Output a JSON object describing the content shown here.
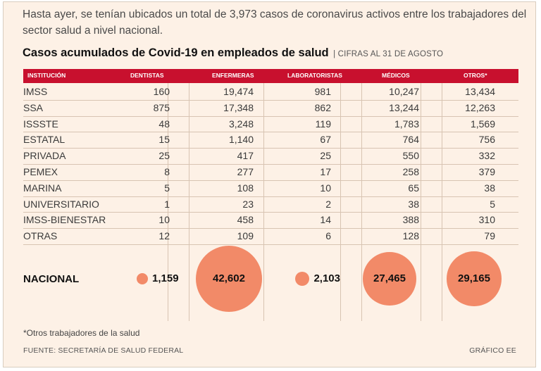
{
  "intro": "Hasta ayer, se tenían ubicados un total de 3,973 casos de coronavirus activos entre los trabajadores del sector salud a nivel nacional.",
  "chart_data": {
    "type": "table",
    "title": "Casos acumulados de Covid-19 en empleados de salud",
    "subtitle": "| CIFRAS AL 31 DE AGOSTO",
    "columns": [
      "INSTITUCIÓN",
      "DENTISTAS",
      "ENFERMERAS",
      "LABORATORISTAS",
      "MÉDICOS",
      "OTROS*"
    ],
    "rows": [
      {
        "name": "IMSS",
        "values": [
          "160",
          "19,474",
          "981",
          "10,247",
          "13,434"
        ]
      },
      {
        "name": "SSA",
        "values": [
          "875",
          "17,348",
          "862",
          "13,244",
          "12,263"
        ]
      },
      {
        "name": "ISSSTE",
        "values": [
          "48",
          "3,248",
          "119",
          "1,783",
          "1,569"
        ]
      },
      {
        "name": "ESTATAL",
        "values": [
          "15",
          "1,140",
          "67",
          "764",
          "756"
        ]
      },
      {
        "name": "PRIVADA",
        "values": [
          "25",
          "417",
          "25",
          "550",
          "332"
        ]
      },
      {
        "name": "PEMEX",
        "values": [
          "8",
          "277",
          "17",
          "258",
          "379"
        ]
      },
      {
        "name": "MARINA",
        "values": [
          "5",
          "108",
          "10",
          "65",
          "38"
        ]
      },
      {
        "name": "UNIVERSITARIO",
        "values": [
          "1",
          "23",
          "2",
          "38",
          "5"
        ]
      },
      {
        "name": "IMSS-BIENESTAR",
        "values": [
          "10",
          "458",
          "14",
          "388",
          "310"
        ]
      },
      {
        "name": "OTRAS",
        "values": [
          "12",
          "109",
          "6",
          "128",
          "79"
        ]
      }
    ],
    "total_label": "NACIONAL",
    "totals": [
      "1,159",
      "42,602",
      "2,103",
      "27,465",
      "29,165"
    ],
    "total_values": [
      1159,
      42602,
      2103,
      27465,
      29165
    ]
  },
  "footer": {
    "note": "*Otros trabajadores de la salud",
    "source": "FUENTE: SECRETARÍA DE SALUD FEDERAL",
    "credit": "GRÁFICO EE"
  },
  "colors": {
    "header": "#c8102e",
    "bubble": "#f28a68",
    "background": "#fdf1e6"
  }
}
